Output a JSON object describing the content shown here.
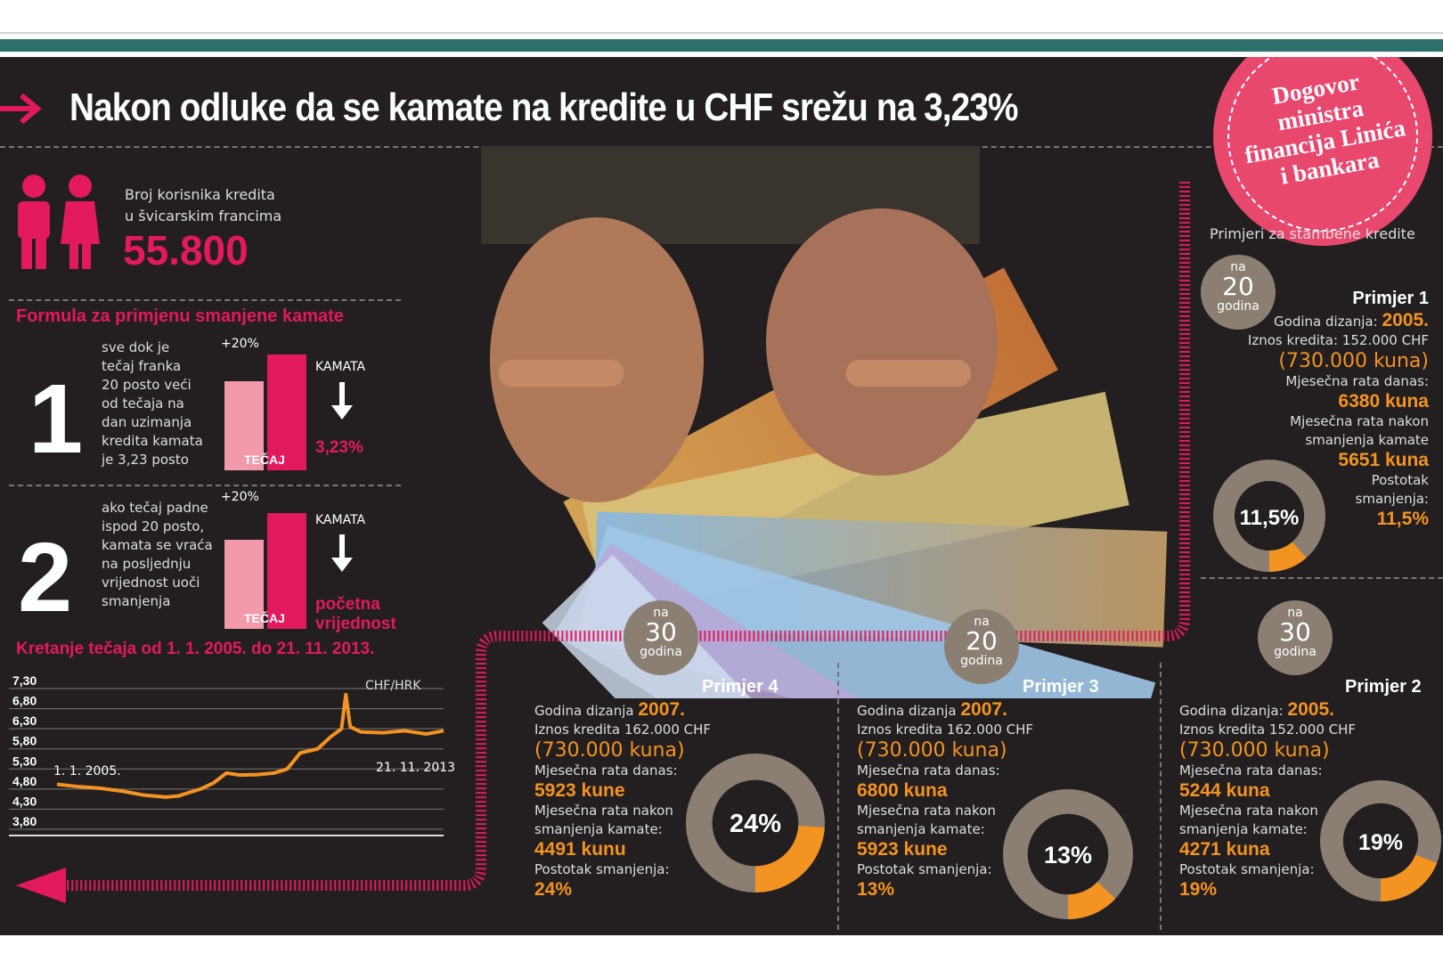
{
  "header": {
    "title": "Nakon odluke da se kamate na kredite u CHF srežu na 3,23%",
    "stamp": "Dogovor ministra financija Linića i bankara"
  },
  "users": {
    "label_line1": "Broj korisnika kredita",
    "label_line2": "u švicarskim francima",
    "count": "55.800"
  },
  "formula": {
    "heading": "Formula za primjenu smanjene kamate",
    "rules": [
      {
        "number": "1",
        "text": [
          "sve dok je",
          "tečaj franka",
          "20 posto veći",
          "od tečaja na",
          "dan uzimanja",
          "kredita kamata",
          "je 3,23 posto"
        ],
        "plus": "+20%",
        "bar_label": "TEČAJ",
        "kamata": "KAMATA",
        "result": [
          "3,23%"
        ]
      },
      {
        "number": "2",
        "text": [
          "ako tečaj padne",
          "ispod 20 posto,",
          "kamata se vraća",
          "na posljednju",
          "vrijednost uoči",
          "smanjenja"
        ],
        "plus": "+20%",
        "bar_label": "TEČAJ",
        "kamata": "KAMATA",
        "result": [
          "početna",
          "vrijednost"
        ]
      }
    ]
  },
  "chart_data": {
    "type": "line",
    "title": "Kretanje  tečaja od 1. 1. 2005. do 21. 11. 2013.",
    "series_label": "CHF/HRK",
    "start_label": "1. 1. 2005.",
    "end_label": "21. 11. 2013.",
    "ylim": [
      3.8,
      7.3
    ],
    "yticks": [
      "7,30",
      "6,80",
      "6,30",
      "5,80",
      "5,30",
      "4,80",
      "4,30",
      "3,80"
    ],
    "x": [
      2005.0,
      2005.5,
      2006.0,
      2006.5,
      2007.0,
      2007.5,
      2007.8,
      2008.0,
      2008.3,
      2008.6,
      2008.9,
      2009.2,
      2009.6,
      2010.0,
      2010.3,
      2010.6,
      2011.0,
      2011.3,
      2011.55,
      2011.65,
      2011.75,
      2012.0,
      2012.5,
      2013.0,
      2013.5,
      2013.9
    ],
    "values": [
      4.72,
      4.66,
      4.62,
      4.55,
      4.45,
      4.4,
      4.43,
      4.5,
      4.6,
      4.75,
      5.0,
      4.95,
      4.96,
      5.0,
      5.1,
      5.5,
      5.6,
      5.9,
      6.1,
      6.95,
      6.15,
      6.02,
      6.0,
      6.05,
      5.97,
      6.05
    ]
  },
  "examples_title": "Primjeri za stambene kredite",
  "examples": [
    {
      "id": "p1",
      "title": "Primjer 1",
      "years_prefix": "na",
      "years": "20",
      "years_suffix": "godina",
      "year_label": "Godina dizanja:",
      "year": "2005.",
      "amount": "Iznos kredita: 152.000 CHF",
      "kuna": "(730.000 kuna)",
      "rate_now_label": "Mjesečna rata danas:",
      "rate_now": "6380 kuna",
      "rate_after_label1": "Mjesečna rata nakon",
      "rate_after_label2": "smanjenja kamate",
      "rate_after": "5651 kuna",
      "pct_label1": "Postotak",
      "pct_label2": "smanjenja:",
      "pct": "11,5%",
      "donut_value": 11.5,
      "donut_text": "11,5%"
    },
    {
      "id": "p4",
      "title": "Primjer 4",
      "years_prefix": "na",
      "years": "30",
      "years_suffix": "godina",
      "year_label": "Godina dizanja",
      "year": "2007.",
      "amount": "Iznos kredita 162.000 CHF",
      "kuna": "(730.000 kuna)",
      "rate_now_label": "Mjesečna rata danas:",
      "rate_now": "5923 kune",
      "rate_after_label1": "Mjesečna rata nakon",
      "rate_after_label2": "smanjenja kamate:",
      "rate_after": "4491 kunu",
      "pct_label1": "Postotak smanjenja:",
      "pct": "24%",
      "donut_value": 24,
      "donut_text": "24%"
    },
    {
      "id": "p3",
      "title": "Primjer 3",
      "years_prefix": "na",
      "years": "20",
      "years_suffix": "godina",
      "year_label": "Godina dizanja",
      "year": "2007.",
      "amount": "Iznos kredita 162.000 CHF",
      "kuna": "(730.000 kuna)",
      "rate_now_label": "Mjesečna rata danas:",
      "rate_now": "6800 kuna",
      "rate_after_label1": "Mjesečna rata nakon",
      "rate_after_label2": "smanjenja kamate:",
      "rate_after": "5923 kune",
      "pct_label1": "Postotak smanjenja:",
      "pct": "13%",
      "donut_value": 13,
      "donut_text": "13%"
    },
    {
      "id": "p2",
      "title": "Primjer 2",
      "years_prefix": "na",
      "years": "30",
      "years_suffix": "godina",
      "year_label": "Godina dizanja:",
      "year": "2005.",
      "amount": "Iznos kredita 152.000 CHF",
      "kuna": "(730.000 kuna)",
      "rate_now_label": "Mjesečna rata danas:",
      "rate_now": "5244 kuna",
      "rate_after_label1": "Mjesečna rata nakon",
      "rate_after_label2": "smanjenja kamate:",
      "rate_after": "4271 kuna",
      "pct_label1": "Postotak smanjenja:",
      "pct": "19%",
      "donut_value": 19,
      "donut_text": "19%"
    }
  ],
  "colors": {
    "background": "#231f20",
    "pink": "#e3195f",
    "light_pink": "#f29aac",
    "orange": "#f39321",
    "taupe": "#8a7f72",
    "teal_band": "#2e6f6a"
  },
  "icons": [
    "arrow-right-icon",
    "people-icon",
    "down-arrow-icon",
    "left-arrow-icon"
  ]
}
